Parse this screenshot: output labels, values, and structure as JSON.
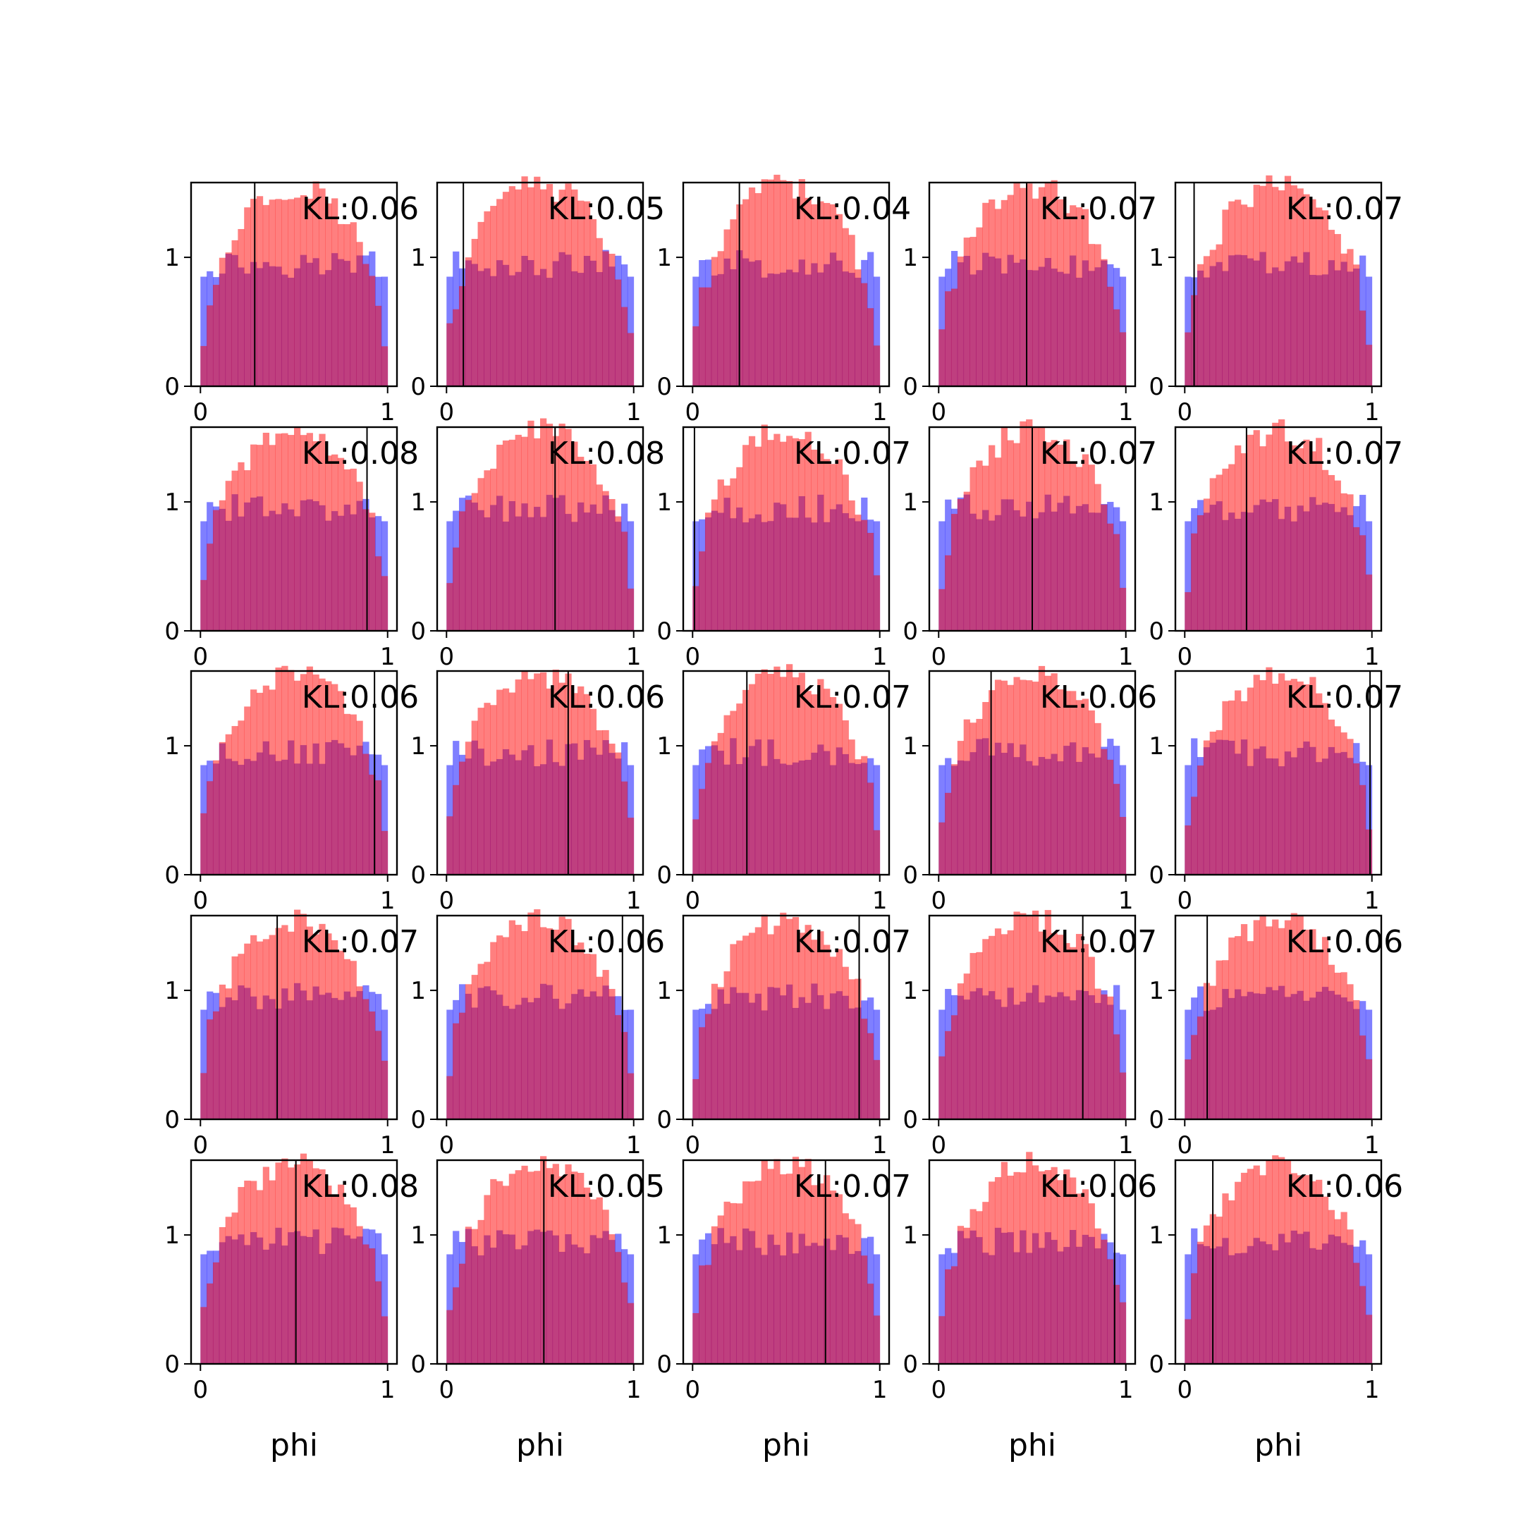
{
  "figure": {
    "xlabel": "phi",
    "kl_prefix": "KL:",
    "colors": {
      "red": "#ff0000",
      "blue": "#0000ff",
      "red_alpha": 0.5,
      "blue_alpha": 0.5,
      "axes": "#000000"
    },
    "xlim": [
      -0.05,
      1.05
    ],
    "ylim": [
      0,
      1.58
    ],
    "xticks": [
      0,
      1
    ],
    "yticks": [
      0,
      1
    ],
    "bins": 30,
    "rows": 5,
    "cols": 5
  },
  "chart_data": [
    {
      "type": "bar",
      "kl": "0.06",
      "vline_x": 0.29
    },
    {
      "type": "bar",
      "kl": "0.05",
      "vline_x": 0.09
    },
    {
      "type": "bar",
      "kl": "0.04",
      "vline_x": 0.25
    },
    {
      "type": "bar",
      "kl": "0.07",
      "vline_x": 0.47
    },
    {
      "type": "bar",
      "kl": "0.07",
      "vline_x": 0.05
    },
    {
      "type": "bar",
      "kl": "0.08",
      "vline_x": 0.89
    },
    {
      "type": "bar",
      "kl": "0.08",
      "vline_x": 0.58
    },
    {
      "type": "bar",
      "kl": "0.07",
      "vline_x": 0.01
    },
    {
      "type": "bar",
      "kl": "0.07",
      "vline_x": 0.5
    },
    {
      "type": "bar",
      "kl": "0.07",
      "vline_x": 0.33
    },
    {
      "type": "bar",
      "kl": "0.06",
      "vline_x": 0.93
    },
    {
      "type": "bar",
      "kl": "0.06",
      "vline_x": 0.65
    },
    {
      "type": "bar",
      "kl": "0.07",
      "vline_x": 0.29
    },
    {
      "type": "bar",
      "kl": "0.06",
      "vline_x": 0.28
    },
    {
      "type": "bar",
      "kl": "0.07",
      "vline_x": 0.99
    },
    {
      "type": "bar",
      "kl": "0.07",
      "vline_x": 0.41
    },
    {
      "type": "bar",
      "kl": "0.06",
      "vline_x": 0.94
    },
    {
      "type": "bar",
      "kl": "0.07",
      "vline_x": 0.89
    },
    {
      "type": "bar",
      "kl": "0.07",
      "vline_x": 0.77
    },
    {
      "type": "bar",
      "kl": "0.06",
      "vline_x": 0.12
    },
    {
      "type": "bar",
      "kl": "0.08",
      "vline_x": 0.51
    },
    {
      "type": "bar",
      "kl": "0.05",
      "vline_x": 0.52
    },
    {
      "type": "bar",
      "kl": "0.07",
      "vline_x": 0.71
    },
    {
      "type": "bar",
      "kl": "0.06",
      "vline_x": 0.94
    },
    {
      "type": "bar",
      "kl": "0.06",
      "vline_x": 0.15
    }
  ]
}
